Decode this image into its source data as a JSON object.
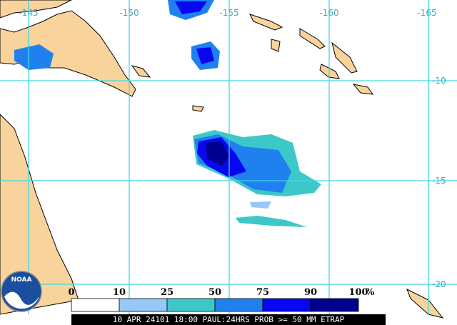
{
  "map": {
    "lon_labels": [
      "-145",
      "-150",
      "-155",
      "-160",
      "-165"
    ],
    "lat_labels": [
      "-10",
      "-15",
      "-20"
    ]
  },
  "legend": {
    "labels": [
      "0",
      "10",
      "25",
      "50",
      "75",
      "90",
      "100"
    ],
    "unit": "%",
    "colors": [
      "#ffffff",
      "#96c8f8",
      "#3cc8c8",
      "#2080f0",
      "#0808f0",
      "#000090"
    ]
  },
  "logo": "NOAA",
  "footer": "10 APR 24101 18:00 PAUL:24HRS PROB >= 50 MM ETRAP"
}
